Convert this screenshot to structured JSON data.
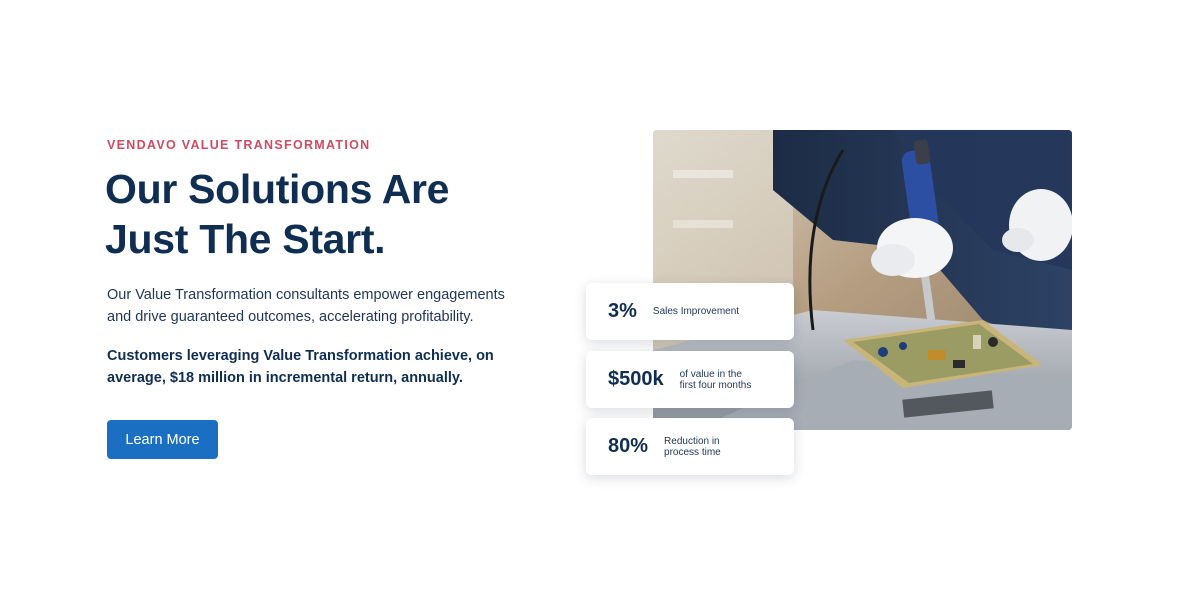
{
  "hero": {
    "eyebrow": "VENDAVO VALUE TRANSFORMATION",
    "headline_line1": "Our Solutions Are",
    "headline_line2": "Just The Start.",
    "intro": "Our Value Transformation consultants empower engagements and drive guaranteed outcomes, accelerating profitability.",
    "emphasis": "Customers leveraging Value Transformation achieve, on average, $18 million in incremental return, annually.",
    "cta_label": "Learn More"
  },
  "stats": [
    {
      "value": "3%",
      "label": "Sales Improvement"
    },
    {
      "value": "$500k",
      "label": "of value in the first four months"
    },
    {
      "value": "80%",
      "label": "Reduction in process time"
    }
  ],
  "colors": {
    "accent": "#d04a65",
    "heading": "#0f2e52",
    "button": "#1b6fc2",
    "background": "#ffffff"
  }
}
